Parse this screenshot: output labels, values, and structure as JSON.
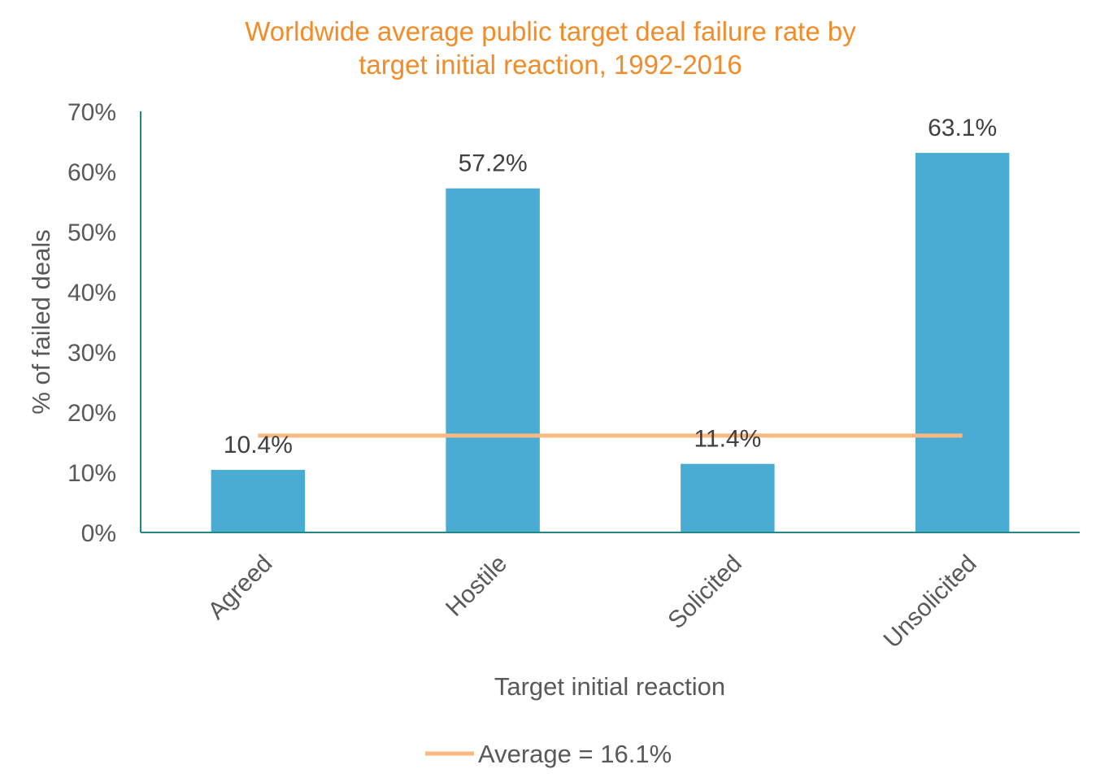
{
  "chart_data": {
    "type": "bar",
    "title_lines": [
      "Worldwide average public target deal failure rate by",
      "target initial reaction, 1992-2016"
    ],
    "categories": [
      "Agreed",
      "Hostile",
      "Solicited",
      "Unsolicited"
    ],
    "values": [
      10.4,
      57.2,
      11.4,
      63.1
    ],
    "data_labels": [
      "10.4%",
      "57.2%",
      "11.4%",
      "63.1%"
    ],
    "xlabel": "Target initial reaction",
    "ylabel": "% of failed deals",
    "ylim": [
      0,
      70
    ],
    "y_ticks": [
      0,
      10,
      20,
      30,
      40,
      50,
      60,
      70
    ],
    "y_tick_labels": [
      "0%",
      "10%",
      "20%",
      "30%",
      "40%",
      "50%",
      "60%",
      "70%"
    ],
    "reference_line": {
      "value": 16.1,
      "label": "Average = 16.1%"
    },
    "grid": false,
    "legend_position": "bottom",
    "colors": {
      "bar": "#4BACD3",
      "average_line": "#F9B980",
      "title": "#F28C28",
      "axis": "#1F8A84",
      "text": "#595959"
    }
  }
}
